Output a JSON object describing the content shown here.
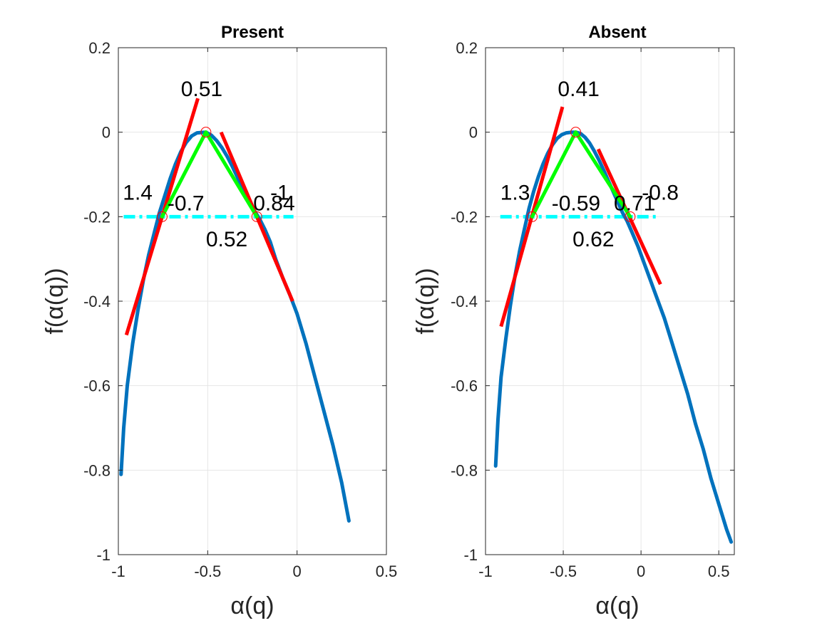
{
  "colors": {
    "curve": "#0072BD",
    "tangent": "#FF0000",
    "triangle": "#00FF00",
    "baseline": "#00FFFF",
    "marker": "#FF0000",
    "grid": "#E6E6E6",
    "axis": "#262626"
  },
  "chart_data": [
    {
      "type": "line",
      "title": "Present",
      "xlabel": "α(q)",
      "ylabel": "f(α(q))",
      "xlim": [
        -1,
        0.5
      ],
      "ylim": [
        -1,
        0.2
      ],
      "xticks": [
        -1,
        -0.5,
        0,
        0.5
      ],
      "xtick_labels": [
        "-1",
        "-0.5",
        "0",
        "0.5"
      ],
      "yticks": [
        -1,
        -0.8,
        -0.6,
        -0.4,
        -0.2,
        0,
        0.2
      ],
      "ytick_labels": [
        "-1",
        "-0.8",
        "-0.6",
        "-0.4",
        "-0.2",
        "0",
        "0.2"
      ],
      "grid": true,
      "spectrum": {
        "x": [
          -0.985,
          -0.97,
          -0.95,
          -0.92,
          -0.89,
          -0.86,
          -0.83,
          -0.8,
          -0.77,
          -0.74,
          -0.71,
          -0.68,
          -0.65,
          -0.62,
          -0.59,
          -0.56,
          -0.53,
          -0.51,
          -0.48,
          -0.45,
          -0.42,
          -0.39,
          -0.36,
          -0.33,
          -0.3,
          -0.27,
          -0.24,
          -0.21,
          -0.18,
          -0.15,
          -0.12,
          -0.08,
          -0.04,
          0.0,
          0.05,
          0.1,
          0.15,
          0.2,
          0.25,
          0.29
        ],
        "y": [
          -0.81,
          -0.7,
          -0.6,
          -0.5,
          -0.42,
          -0.35,
          -0.29,
          -0.24,
          -0.19,
          -0.15,
          -0.11,
          -0.075,
          -0.046,
          -0.024,
          -0.009,
          -0.0015,
          -0.0005,
          0.0,
          -0.007,
          -0.02,
          -0.037,
          -0.058,
          -0.083,
          -0.11,
          -0.135,
          -0.16,
          -0.185,
          -0.205,
          -0.23,
          -0.26,
          -0.3,
          -0.345,
          -0.385,
          -0.43,
          -0.5,
          -0.58,
          -0.66,
          -0.74,
          -0.83,
          -0.92
        ]
      },
      "peak": [
        -0.51,
        0.0
      ],
      "left_point": [
        -0.755,
        -0.2
      ],
      "right_point": [
        -0.225,
        -0.2
      ],
      "left_tangent": [
        [
          -0.955,
          -0.48
        ],
        [
          -0.555,
          0.08
        ]
      ],
      "right_tangent": [
        [
          -0.425,
          0.0
        ],
        [
          -0.025,
          -0.4
        ]
      ],
      "baseline": [
        [
          -0.97,
          -0.2
        ],
        [
          -0.02,
          -0.2
        ]
      ],
      "annotations": [
        {
          "text": "0.51",
          "x": -0.65,
          "y": 0.085
        },
        {
          "text": "1.4",
          "x": -0.975,
          "y": -0.16
        },
        {
          "text": "-0.7",
          "x": -0.725,
          "y": -0.185
        },
        {
          "text": "-1",
          "x": -0.15,
          "y": -0.16
        },
        {
          "text": "0.84",
          "x": -0.245,
          "y": -0.185
        },
        {
          "text": "0.52",
          "x": -0.51,
          "y": -0.27
        }
      ]
    },
    {
      "type": "line",
      "title": "Absent",
      "xlabel": "α(q)",
      "ylabel": "f(α(q))",
      "xlim": [
        -1,
        0.6
      ],
      "ylim": [
        -1,
        0.2
      ],
      "xticks": [
        -1,
        -0.5,
        0,
        0.5
      ],
      "xtick_labels": [
        "-1",
        "-0.5",
        "0",
        "0.5"
      ],
      "yticks": [
        -1,
        -0.8,
        -0.6,
        -0.4,
        -0.2,
        0,
        0.2
      ],
      "ytick_labels": [
        "-1",
        "-0.8",
        "-0.6",
        "-0.4",
        "-0.2",
        "0",
        "0.2"
      ],
      "grid": true,
      "spectrum": {
        "x": [
          -0.935,
          -0.92,
          -0.9,
          -0.87,
          -0.84,
          -0.81,
          -0.78,
          -0.75,
          -0.72,
          -0.69,
          -0.66,
          -0.63,
          -0.6,
          -0.57,
          -0.54,
          -0.51,
          -0.48,
          -0.45,
          -0.42,
          -0.39,
          -0.36,
          -0.33,
          -0.3,
          -0.27,
          -0.24,
          -0.21,
          -0.18,
          -0.15,
          -0.12,
          -0.09,
          -0.06,
          -0.02,
          0.02,
          0.06,
          0.1,
          0.15,
          0.2,
          0.25,
          0.3,
          0.35,
          0.4,
          0.45,
          0.5,
          0.55,
          0.58
        ],
        "y": [
          -0.79,
          -0.68,
          -0.58,
          -0.49,
          -0.41,
          -0.34,
          -0.28,
          -0.23,
          -0.18,
          -0.14,
          -0.105,
          -0.075,
          -0.05,
          -0.03,
          -0.015,
          -0.006,
          -0.0015,
          -0.0003,
          0.0,
          -0.003,
          -0.012,
          -0.026,
          -0.045,
          -0.066,
          -0.09,
          -0.115,
          -0.14,
          -0.165,
          -0.19,
          -0.21,
          -0.235,
          -0.27,
          -0.31,
          -0.35,
          -0.39,
          -0.44,
          -0.5,
          -0.56,
          -0.62,
          -0.69,
          -0.75,
          -0.82,
          -0.88,
          -0.94,
          -0.97
        ]
      },
      "peak": [
        -0.42,
        0.0
      ],
      "left_point": [
        -0.7,
        -0.2
      ],
      "right_point": [
        -0.07,
        -0.2
      ],
      "left_tangent": [
        [
          -0.9,
          -0.46
        ],
        [
          -0.505,
          0.06
        ]
      ],
      "right_tangent": [
        [
          -0.275,
          -0.04
        ],
        [
          0.125,
          -0.36
        ]
      ],
      "baseline": [
        [
          -0.905,
          -0.2
        ],
        [
          0.12,
          -0.2
        ]
      ],
      "annotations": [
        {
          "text": "0.41",
          "x": -0.535,
          "y": 0.085
        },
        {
          "text": "1.3",
          "x": -0.905,
          "y": -0.16
        },
        {
          "text": "-0.59",
          "x": -0.575,
          "y": -0.185
        },
        {
          "text": "0.71",
          "x": -0.175,
          "y": -0.185
        },
        {
          "text": "-0.8",
          "x": 0.005,
          "y": -0.16
        },
        {
          "text": "0.62",
          "x": -0.44,
          "y": -0.27
        }
      ]
    }
  ]
}
